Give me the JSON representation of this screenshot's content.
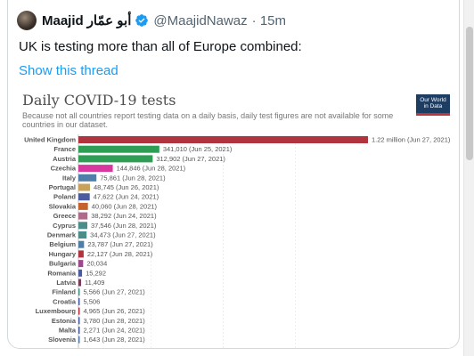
{
  "tweet": {
    "author_name": "Maajid",
    "author_name_arabic": "أبو عمّار",
    "handle": "@MaajidNawaz",
    "time": "· 15m",
    "text": "UK is testing more than all of Europe combined:",
    "thread_link": "Show this thread"
  },
  "logo": {
    "line1": "Our World",
    "line2": "in Data"
  },
  "colors": {
    "link": "#1d9bf0",
    "verified": "#1d9bf0"
  },
  "chart_data": {
    "type": "bar",
    "orientation": "horizontal",
    "title": "Daily COVID-19 tests",
    "subtitle": "Because not all countries report testing data on a daily basis, daily test figures are not available for some countries in our dataset.",
    "categories": [
      "United Kingdom",
      "France",
      "Austria",
      "Czechia",
      "Italy",
      "Portugal",
      "Poland",
      "Slovakia",
      "Greece",
      "Cyprus",
      "Denmark",
      "Belgium",
      "Hungary",
      "Bulgaria",
      "Romania",
      "Latvia",
      "Finland",
      "Croatia",
      "Luxembourg",
      "Estonia",
      "Malta",
      "Slovenia"
    ],
    "values": [
      1220000,
      341010,
      312902,
      144846,
      75861,
      48745,
      47622,
      40060,
      38292,
      37546,
      34473,
      23787,
      22127,
      20034,
      15292,
      11409,
      5566,
      5506,
      4965,
      3780,
      2271,
      1643
    ],
    "labels": [
      "1.22 million (Jun 27, 2021)",
      "341,010 (Jun 25, 2021)",
      "312,902 (Jun 27, 2021)",
      "144,846 (Jun 28, 2021)",
      "75,861 (Jun 28, 2021)",
      "48,745 (Jun 26, 2021)",
      "47,622 (Jun 24, 2021)",
      "40,060 (Jun 28, 2021)",
      "38,292 (Jun 24, 2021)",
      "37,546 (Jun 28, 2021)",
      "34,473 (Jun 27, 2021)",
      "23,787 (Jun 27, 2021)",
      "22,127 (Jun 28, 2021)",
      "20,034",
      "15,292",
      "11,409",
      "5,566 (Jun 27, 2021)",
      "5,506",
      "4,965 (Jun 26, 2021)",
      "3,780 (Jun 28, 2021)",
      "2,271 (Jun 24, 2021)",
      "1,643 (Jun 28, 2021)"
    ],
    "colors": [
      "#b0343d",
      "#2f9e55",
      "#2f9e55",
      "#d6389f",
      "#4f7ea8",
      "#c8a25a",
      "#4c5aa1",
      "#c4622d",
      "#b06a8a",
      "#4b8d8b",
      "#4b8d8b",
      "#4f7ea8",
      "#b0343d",
      "#9a4a8c",
      "#4c5aa1",
      "#7a3b5a",
      "#4b8d8b",
      "#4c5aa1",
      "#b0343d",
      "#4c5aa1",
      "#4c5aa1",
      "#4f7ea8"
    ],
    "xlim": [
      0,
      1220000
    ]
  }
}
